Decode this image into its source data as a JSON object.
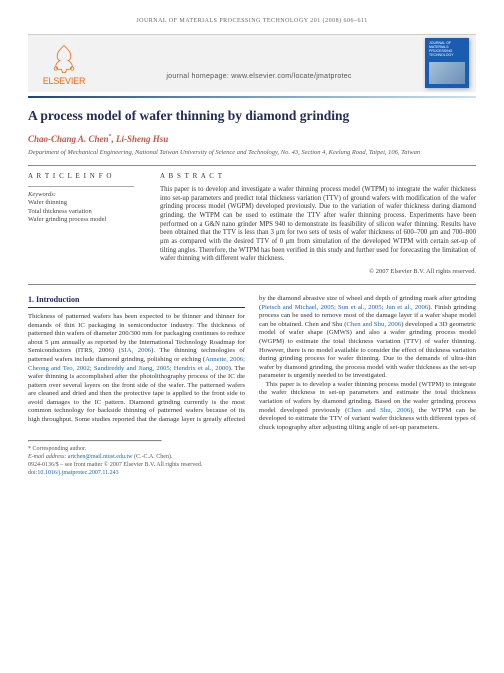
{
  "running_head": "JOURNAL OF MATERIALS PROCESSING TECHNOLOGY 201 (2008) 606–611",
  "publisher_name": "ELSEVIER",
  "homepage_line": "journal homepage: www.elsevier.com/locate/jmatprotec",
  "cover_title": "JOURNAL OF MATERIALS PROCESSING TECHNOLOGY",
  "title": "A process model of wafer thinning by diamond grinding",
  "authors_html": "Chao-Chang A. Chen<sup>*</sup>, Li-Sheng Hsu",
  "affiliation": "Department of Mechanical Engineering, National Taiwan University of Science and Technology, No. 43, Section 4, Keelung Road, Taipei, 106, Taiwan",
  "info_label": "A R T I C L E   I N F O",
  "abstract_label": "A B S T R A C T",
  "keywords_label": "Keywords:",
  "keywords": [
    "Wafer thinning",
    "Total thickness variation",
    "Wafer grinding process model"
  ],
  "abstract_text": "This paper is to develop and investigate a wafer thinning process model (WTPM) to integrate the wafer thickness into set-up parameters and predict total thickness variation (TTV) of ground wafers with modification of the wafer grinding process model (WGPM) developed previously. Due to the variation of wafer thickness during diamond grinding, the WTPM can be used to estimate the TTV after wafer thinning process. Experiments have been performed on a G&N nano grinder MPS 940 to demonstrate its feasibility of silicon wafer thinning. Results have been obtained that the TTV is less than 3 μm for two sets of tests of wafer thickness of 600–700 μm and 700–800 μm as compared with the desired TTV of 0 μm from simulation of the developed WTPM with certain set-up of tilting angles. Therefore, the WTPM has been verified in this study and further used for forecasting the limitation of wafer thinning with different wafer thickness.",
  "copyright": "© 2007 Elsevier B.V. All rights reserved.",
  "sec1_head": "1.      Introduction",
  "body_p1": "Thickness of patterned wafers has been expected to be thinner and thinner for demands of thin IC packaging in semiconductor industry. The thickness of patterned thin wafers of diameter 200/300 mm for packaging continues to reduce about 5 μm annually as reported by the International Technology Roadmap for Semiconductors (ITRS, 2006) (",
  "cite1": "SIA, 2006",
  "body_p1b": "). The thinning technologies of patterned wafers include diamond grinding, polishing or etching (",
  "cite2": "Annette, 2006; Cheong and Teo, 2002; Sandireddy and Jiang, 2005; Hendrix et al., 2000",
  "body_p1c": "). The wafer thinning is accomplished after the photolithography process of the IC die pattern over several layers on the front side of the wafer. The patterned wafers are cleaned and dried and then the protective tape is applied to the front side to avoid damages to the IC pattern. Diamond grinding currently is the most common technology for backside thinning of patterned wafers because of its high throughput. Some studies reported that the damage layer is greatly affected by the diamond abrasive size of wheel and depth of grinding mark after",
  "body_p2a": "grinding (",
  "cite3": "Pietsch and Michael, 2005; Sun et al., 2005; Jun et al., 2006",
  "body_p2b": "). Finish grinding process can be used to remove most of the damage layer if a wafer shape model can be obtained. Chen and Shu (",
  "cite4": "Chen and Shu, 2006",
  "body_p2c": ") developed a 3D geometric model of wafer shape (GMWS) and also a wafer grinding process model (WGPM) to estimate the total thickness variation (TTV) of wafer thinning. However, there is no model available to consider the effect of thickness variation during grinding process for wafer thinning. Due to the demands of ultra-thin wafer by diamond grinding, the process model with wafer thickness as the set-up parameter is urgently needed to be investigated.",
  "body_p3": "This paper is to develop a wafer thinning process model (WTPM) to integrate the wafer thickness in set-up parameters and estimate the total thickness variation of wafers by diamond grinding. Based on the wafer grinding process model developed previously (",
  "cite5": "Chen and Shu, 2006",
  "body_p3b": "), the WTPM can be developed to estimate the TTV of variant wafer thickness with different types of chuck topography after adjusting tilting angle of set-up parameters.",
  "corr_label": "* Corresponding author.",
  "email_label": "E-mail address: ",
  "email": "artchen@mail.ntust.edu.tw",
  "email_who": " (C.-C.A. Chen).",
  "footer_copy": "0924-0136/$ – see front matter © 2007 Elsevier B.V. All rights reserved.",
  "doi_label": "doi:",
  "doi": "10.1016/j.jmatprotec.2007.11.243",
  "colors": {
    "title": "#232c5a",
    "author": "#c0594a",
    "cite": "#1a66b3",
    "elsevier": "#ec6a14",
    "cover": "#1a5db0"
  }
}
